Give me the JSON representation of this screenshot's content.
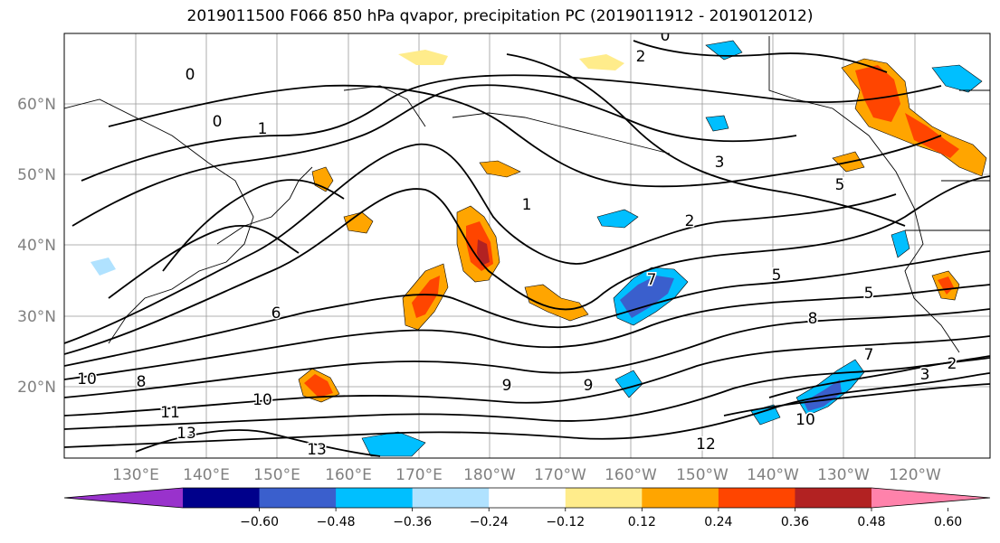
{
  "title": "2019011500 F066 850 hPa qvapor, precipitation PC (2019011912 - 2019012012)",
  "lat_labels": [
    "60°N",
    "50°N",
    "40°N",
    "30°N",
    "20°N"
  ],
  "lon_labels": [
    "130°E",
    "140°E",
    "150°E",
    "160°E",
    "170°E",
    "180°W",
    "170°W",
    "160°W",
    "150°W",
    "140°W",
    "130°W",
    "120°W"
  ],
  "colorbar": {
    "colors": [
      "#9932cc",
      "#00008b",
      "#3a5fcd",
      "#00bfff",
      "#b0e2ff",
      "#ffffff",
      "#ffec8b",
      "#ffa500",
      "#ff4500",
      "#b22222",
      "#ff82ab"
    ],
    "ticks": [
      "−0.60",
      "−0.48",
      "−0.36",
      "−0.24",
      "−0.12",
      "0.12",
      "0.24",
      "0.36",
      "0.48",
      "0.60"
    ]
  },
  "contour_labels": [
    "0",
    "0",
    "0",
    "1",
    "1",
    "2",
    "2",
    "3",
    "5",
    "5",
    "5",
    "6",
    "7",
    "8",
    "8",
    "9",
    "9",
    "10",
    "10",
    "10",
    "11",
    "12",
    "13",
    "13",
    "3",
    "2",
    "7"
  ]
}
